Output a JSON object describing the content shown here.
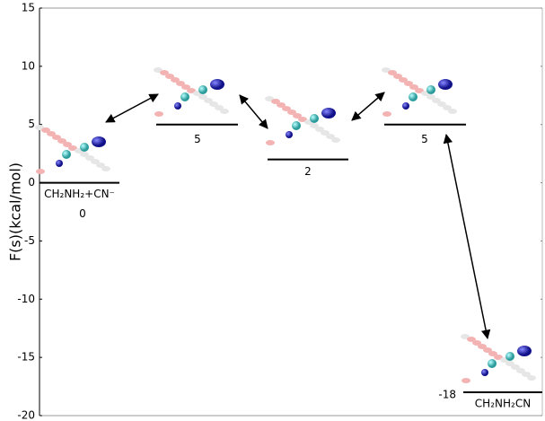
{
  "chart_data": {
    "type": "energy_levels",
    "y_label": "F(s)(kcal/mol)",
    "categories": [
      "CH₂NH₂+CN⁻",
      null,
      null,
      null,
      "CH₂NH₂CN"
    ],
    "values": [
      0,
      5,
      2,
      5,
      -18
    ],
    "color": "#000000",
    "ylim": [
      -20,
      15
    ],
    "yticks": [
      -20,
      -15,
      -10,
      -5,
      0,
      5,
      10,
      15
    ]
  }
}
